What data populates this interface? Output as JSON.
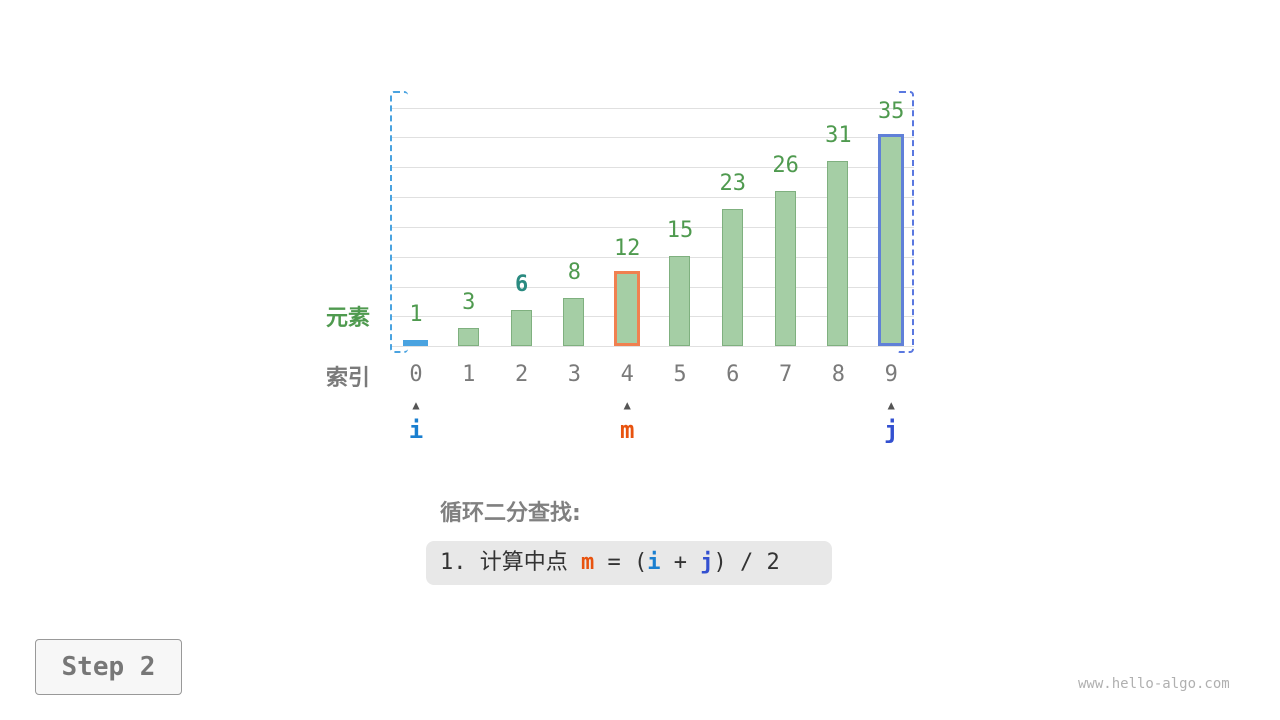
{
  "labels": {
    "elements": "元素",
    "indices": "索引"
  },
  "array": [
    {
      "index": "0",
      "value": "1"
    },
    {
      "index": "1",
      "value": "3"
    },
    {
      "index": "2",
      "value": "6"
    },
    {
      "index": "3",
      "value": "8"
    },
    {
      "index": "4",
      "value": "12"
    },
    {
      "index": "5",
      "value": "15"
    },
    {
      "index": "6",
      "value": "23"
    },
    {
      "index": "7",
      "value": "26"
    },
    {
      "index": "8",
      "value": "31"
    },
    {
      "index": "9",
      "value": "35"
    }
  ],
  "pointers": {
    "i": {
      "label": "i",
      "index": 0,
      "color": "#1a7fd0"
    },
    "m": {
      "label": "m",
      "index": 4,
      "color": "#e8530f"
    },
    "j": {
      "label": "j",
      "index": 9,
      "color": "#3350d0"
    }
  },
  "highlight": {
    "target_index": 2,
    "target_color": "#2a8a80"
  },
  "title": "循环二分查找:",
  "step_text": {
    "prefix": "1. 计算中点 ",
    "m": "m",
    "eq": " = (",
    "i": "i",
    "plus": " + ",
    "j": "j",
    "suffix": ") / 2"
  },
  "step_button": "Step 2",
  "watermark": "www.hello-algo.com"
}
